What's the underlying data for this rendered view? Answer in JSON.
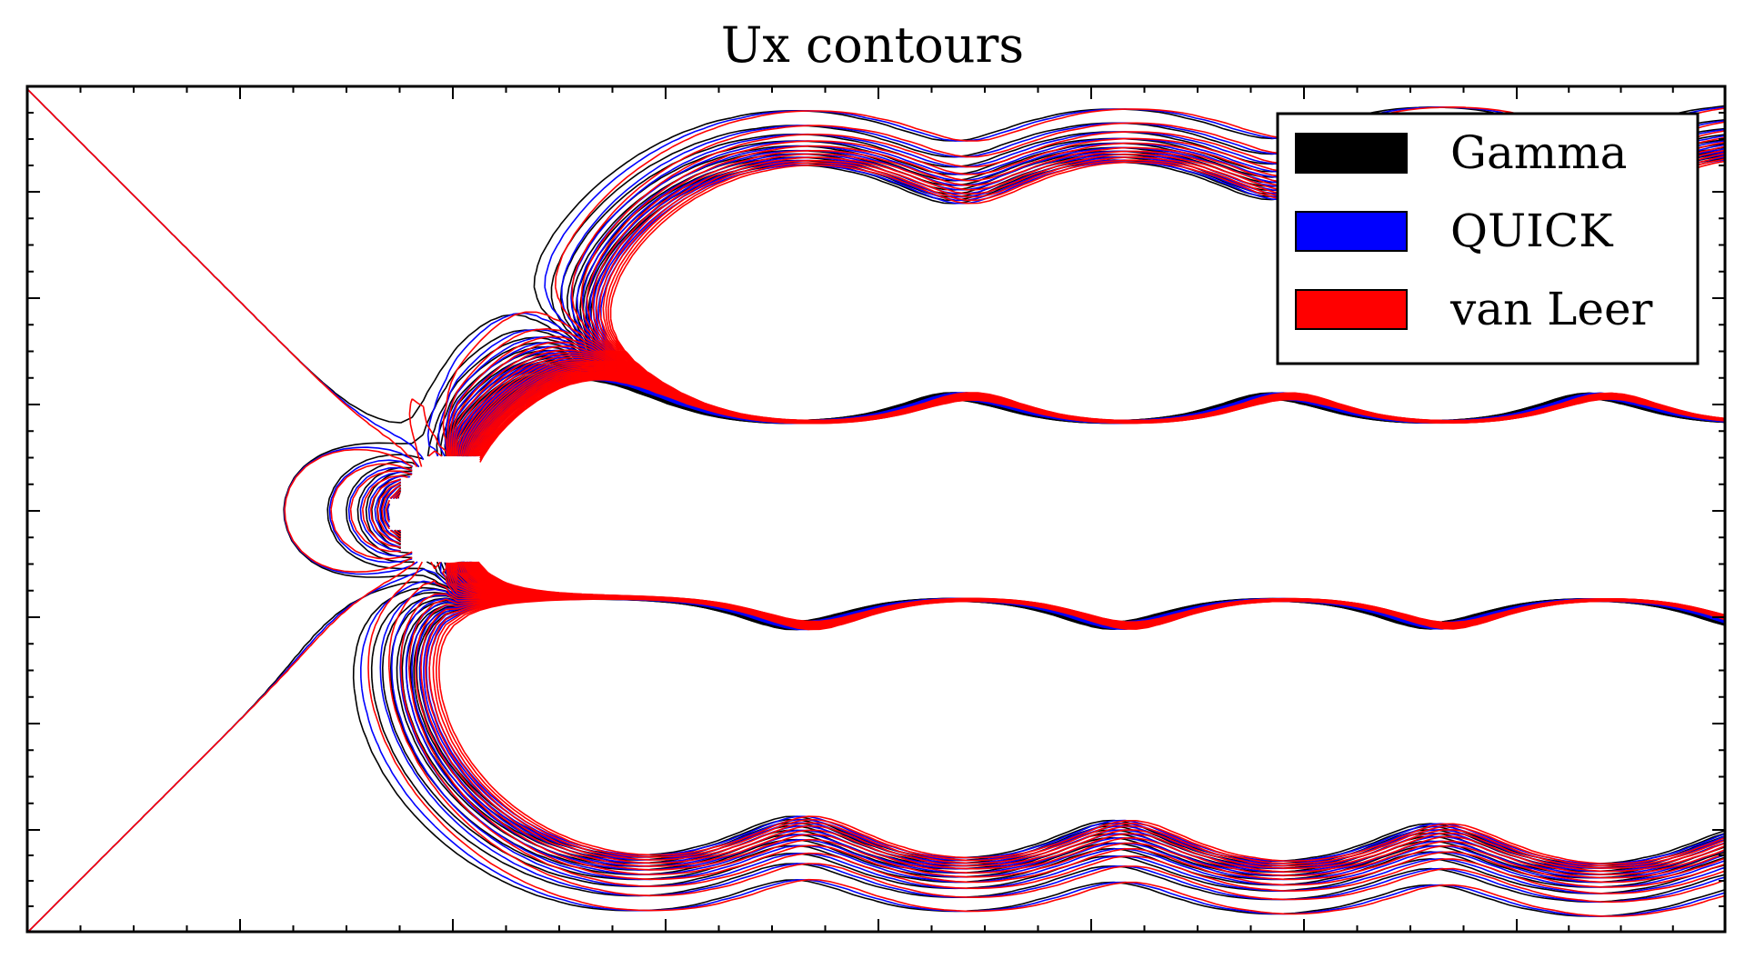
{
  "chart_data": {
    "type": "contour",
    "title": "Ux contours",
    "xlabel": "",
    "ylabel": "",
    "grid": false,
    "tick_labels_shown": false,
    "legend": {
      "placement": "top-right",
      "entries": [
        {
          "label": "Gamma",
          "color": "#000000"
        },
        {
          "label": "QUICK",
          "color": "#0000ff"
        },
        {
          "label": "van Leer",
          "color": "#ff0000"
        }
      ]
    },
    "series": [
      {
        "name": "Gamma",
        "color": "#000000"
      },
      {
        "name": "QUICK",
        "color": "#0000ff"
      },
      {
        "name": "van Leer",
        "color": "#ff0000"
      }
    ],
    "obstacle": "cylinder"
  }
}
